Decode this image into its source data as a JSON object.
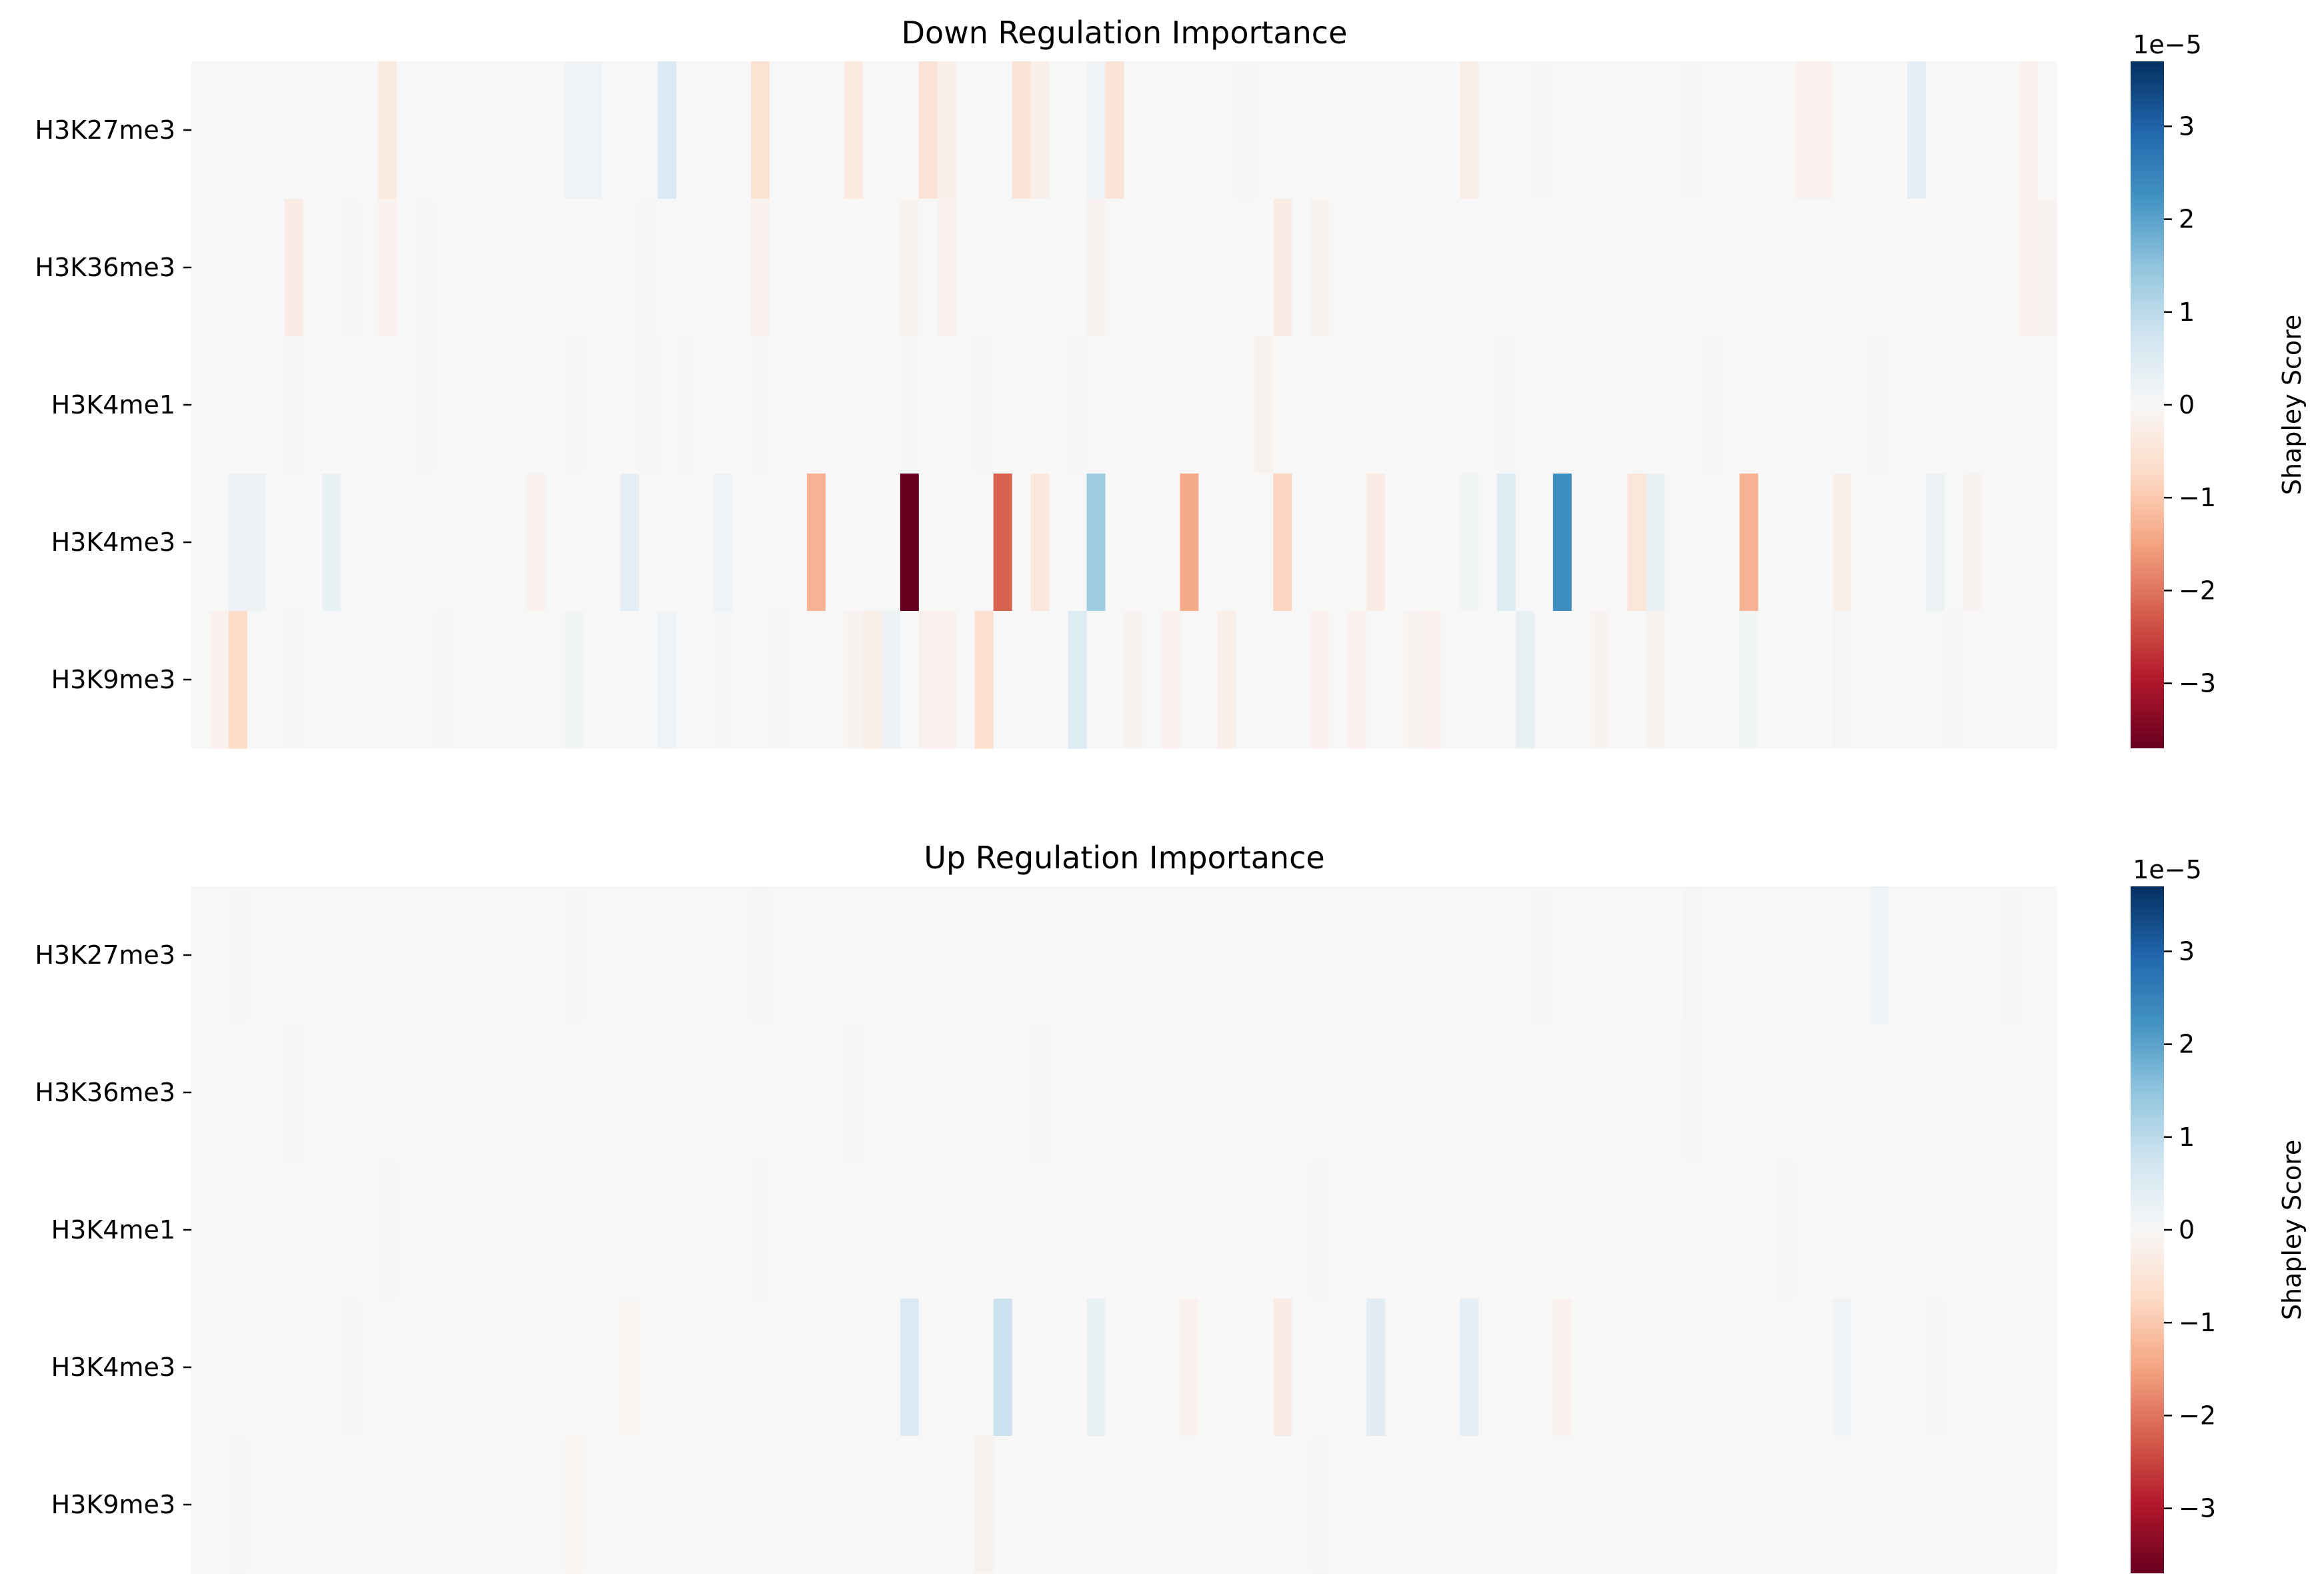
{
  "chart_data": [
    {
      "type": "heatmap",
      "title": "Down Regulation Importance",
      "rows": [
        "H3K27me3",
        "H3K36me3",
        "H3K4me1",
        "H3K4me3",
        "H3K9me3"
      ],
      "n_columns": 100,
      "sparse_values": {
        "H3K27me3": [
          [
            10,
            -0.35
          ],
          [
            20,
            0.15
          ],
          [
            21,
            0.15
          ],
          [
            25,
            0.55
          ],
          [
            30,
            -0.55
          ],
          [
            35,
            -0.35
          ],
          [
            39,
            -0.5
          ],
          [
            40,
            -0.2
          ],
          [
            44,
            -0.5
          ],
          [
            45,
            -0.2
          ],
          [
            48,
            0.15
          ],
          [
            49,
            -0.5
          ],
          [
            56,
            0.08
          ],
          [
            68,
            -0.25
          ],
          [
            72,
            0.05
          ],
          [
            80,
            0.05
          ],
          [
            86,
            -0.15
          ],
          [
            87,
            -0.15
          ],
          [
            92,
            0.35
          ],
          [
            98,
            -0.15
          ]
        ],
        "H3K36me3": [
          [
            5,
            -0.3
          ],
          [
            8,
            0.05
          ],
          [
            10,
            -0.15
          ],
          [
            12,
            0.05
          ],
          [
            24,
            0.05
          ],
          [
            30,
            -0.15
          ],
          [
            38,
            -0.1
          ],
          [
            40,
            -0.15
          ],
          [
            48,
            -0.1
          ],
          [
            58,
            -0.3
          ],
          [
            60,
            -0.1
          ],
          [
            98,
            -0.15
          ],
          [
            99,
            -0.1
          ]
        ],
        "H3K4me1": [
          [
            5,
            0.03
          ],
          [
            12,
            0.03
          ],
          [
            20,
            0.03
          ],
          [
            24,
            0.06
          ],
          [
            26,
            0.03
          ],
          [
            30,
            0.03
          ],
          [
            38,
            0.03
          ],
          [
            42,
            0.03
          ],
          [
            47,
            0.03
          ],
          [
            57,
            -0.12
          ],
          [
            70,
            0.03
          ],
          [
            81,
            0.03
          ],
          [
            90,
            0.03
          ]
        ],
        "H3K4me3": [
          [
            2,
            0.2
          ],
          [
            3,
            0.2
          ],
          [
            7,
            0.25
          ],
          [
            18,
            -0.15
          ],
          [
            23,
            0.35
          ],
          [
            28,
            0.15
          ],
          [
            33,
            -1.3
          ],
          [
            38,
            -3.7
          ],
          [
            43,
            -2.2
          ],
          [
            45,
            -0.4
          ],
          [
            48,
            1.3
          ],
          [
            53,
            -1.4
          ],
          [
            58,
            -0.8
          ],
          [
            63,
            -0.3
          ],
          [
            68,
            0.1
          ],
          [
            70,
            0.5
          ],
          [
            73,
            2.3
          ],
          [
            77,
            -0.45
          ],
          [
            78,
            0.25
          ],
          [
            83,
            -1.3
          ],
          [
            88,
            -0.2
          ],
          [
            93,
            0.2
          ],
          [
            95,
            -0.1
          ]
        ],
        "H3K9me3": [
          [
            1,
            -0.15
          ],
          [
            2,
            -0.7
          ],
          [
            5,
            0.05
          ],
          [
            13,
            0.05
          ],
          [
            20,
            0.1
          ],
          [
            25,
            0.15
          ],
          [
            28,
            0.05
          ],
          [
            31,
            0.05
          ],
          [
            35,
            -0.1
          ],
          [
            36,
            -0.2
          ],
          [
            37,
            0.2
          ],
          [
            39,
            -0.15
          ],
          [
            40,
            -0.15
          ],
          [
            42,
            -0.6
          ],
          [
            47,
            0.5
          ],
          [
            50,
            -0.1
          ],
          [
            52,
            -0.15
          ],
          [
            55,
            -0.2
          ],
          [
            60,
            -0.15
          ],
          [
            62,
            -0.15
          ],
          [
            65,
            -0.1
          ],
          [
            66,
            -0.15
          ],
          [
            71,
            0.3
          ],
          [
            75,
            -0.1
          ],
          [
            78,
            -0.1
          ],
          [
            83,
            0.1
          ],
          [
            88,
            0.08
          ],
          [
            94,
            0.05
          ]
        ]
      },
      "colorbar": {
        "label": "Shapley Score",
        "exponent_label": "1e−5",
        "ticks": [
          3,
          2,
          1,
          0,
          -1,
          -2,
          -3
        ],
        "tick_labels": [
          "3",
          "2",
          "1",
          "0",
          "−1",
          "−2",
          "−3"
        ],
        "vmin": -3.7,
        "vmax": 3.7,
        "scale": 1e-05
      },
      "colormap": "RdBu",
      "axis_labels": {
        "x": "",
        "y": ""
      }
    },
    {
      "type": "heatmap",
      "title": "Up Regulation Importance",
      "rows": [
        "H3K27me3",
        "H3K36me3",
        "H3K4me1",
        "H3K4me3",
        "H3K9me3"
      ],
      "n_columns": 100,
      "sparse_values": {
        "H3K27me3": [
          [
            2,
            0.05
          ],
          [
            20,
            0.04
          ],
          [
            30,
            -0.05
          ],
          [
            72,
            0.05
          ],
          [
            80,
            0.08
          ],
          [
            90,
            0.15
          ],
          [
            97,
            0.05
          ]
        ],
        "H3K36me3": [
          [
            5,
            0.03
          ],
          [
            35,
            -0.03
          ],
          [
            45,
            0.03
          ],
          [
            80,
            0.03
          ]
        ],
        "H3K4me1": [
          [
            10,
            0.03
          ],
          [
            30,
            0.03
          ],
          [
            60,
            0.03
          ],
          [
            85,
            0.03
          ]
        ],
        "H3K4me3": [
          [
            8,
            0.05
          ],
          [
            23,
            -0.08
          ],
          [
            38,
            0.55
          ],
          [
            43,
            0.8
          ],
          [
            48,
            0.25
          ],
          [
            53,
            -0.15
          ],
          [
            58,
            -0.3
          ],
          [
            63,
            0.4
          ],
          [
            68,
            0.35
          ],
          [
            73,
            -0.15
          ],
          [
            88,
            0.15
          ],
          [
            93,
            0.05
          ]
        ],
        "H3K9me3": [
          [
            2,
            0.03
          ],
          [
            20,
            -0.08
          ],
          [
            42,
            -0.12
          ],
          [
            60,
            0.03
          ]
        ]
      },
      "colorbar": {
        "label": "Shapley Score",
        "exponent_label": "1e−5",
        "ticks": [
          3,
          2,
          1,
          0,
          -1,
          -2,
          -3
        ],
        "tick_labels": [
          "3",
          "2",
          "1",
          "0",
          "−1",
          "−2",
          "−3"
        ],
        "vmin": -3.7,
        "vmax": 3.7,
        "scale": 1e-05
      },
      "colormap": "RdBu",
      "axis_labels": {
        "x": "",
        "y": ""
      }
    }
  ]
}
